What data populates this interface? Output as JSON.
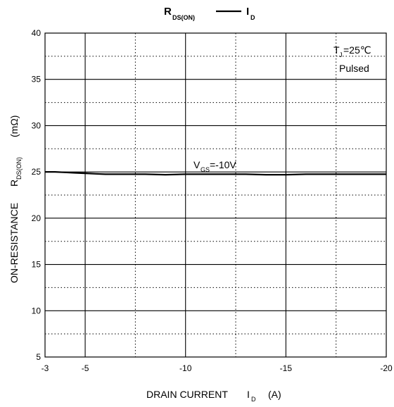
{
  "chart_data": {
    "type": "line",
    "title": {
      "main": "R",
      "main_sub": "DS(ON)",
      "sep": "—",
      "vs": "I",
      "vs_sub": "D"
    },
    "xlabel": {
      "main": "DRAIN CURRENT",
      "symbol": "I",
      "symbol_sub": "D",
      "unit": "(A)"
    },
    "ylabel": {
      "main": "ON-RESISTANCE",
      "symbol": "R",
      "symbol_sub": "DS(ON)",
      "unit": "(mΩ)"
    },
    "xlim": [
      -3,
      -20
    ],
    "ylim": [
      5,
      40
    ],
    "x_ticks": [
      -3,
      -5,
      -10,
      -15,
      -20
    ],
    "y_ticks": [
      5,
      10,
      15,
      20,
      25,
      30,
      35,
      40
    ],
    "grid": true,
    "conditions": {
      "tj_symbol": "T",
      "tj_sub": "J",
      "tj_value": "=25℃",
      "mode": "Pulsed"
    },
    "series": [
      {
        "label": {
          "symbol": "V",
          "sub": "GS",
          "value": "=-10V"
        },
        "x": [
          -3,
          -3.5,
          -4,
          -4.5,
          -5,
          -5.5,
          -6,
          -7,
          -8,
          -9,
          -10,
          -11,
          -12,
          -13,
          -14,
          -15,
          -16,
          -17,
          -18,
          -19,
          -20
        ],
        "y": [
          25.0,
          25.0,
          24.95,
          24.9,
          24.85,
          24.8,
          24.75,
          24.75,
          24.75,
          24.7,
          24.75,
          24.75,
          24.75,
          24.75,
          24.7,
          24.7,
          24.75,
          24.75,
          24.75,
          24.75,
          24.75
        ]
      }
    ]
  }
}
